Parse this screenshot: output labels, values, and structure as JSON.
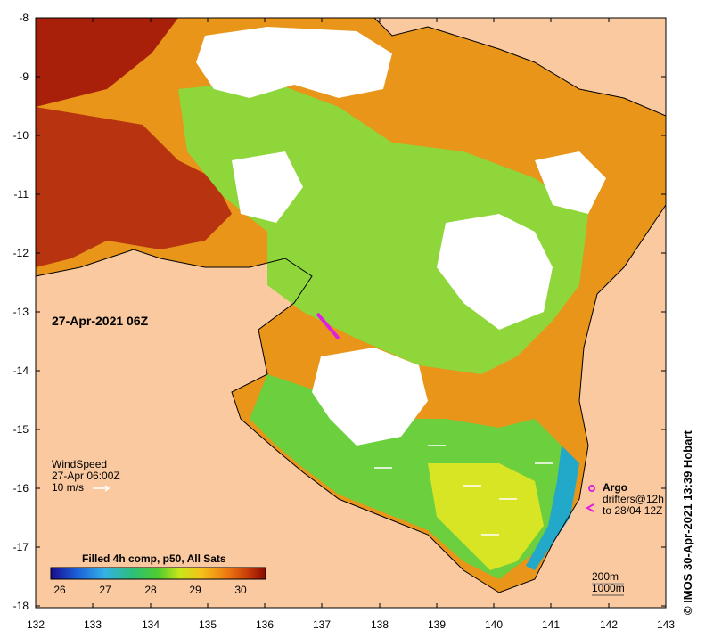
{
  "map": {
    "timestamp_label": "27-Apr-2021 06Z",
    "y_ticks": [
      "-8",
      "-9",
      "-10",
      "-11",
      "-12",
      "-13",
      "-14",
      "-15",
      "-16",
      "-17",
      "-18"
    ],
    "x_ticks": [
      "132",
      "133",
      "134",
      "135",
      "136",
      "137",
      "138",
      "139",
      "140",
      "141",
      "142",
      "143"
    ],
    "wind": {
      "title": "WindSpeed",
      "time": "27-Apr 06:00Z",
      "scale": "10 m/s"
    },
    "argo": {
      "title": "Argo",
      "line1": "drifters@12h",
      "line2": "to 28/04 12Z"
    },
    "colorbar": {
      "title": "Filled 4h comp, p50, All Sats",
      "ticks": [
        "26",
        "27",
        "28",
        "29",
        "30"
      ],
      "colors": [
        "#1a0a8c",
        "#1b5fd8",
        "#34b0e6",
        "#2bc07a",
        "#4fcc2e",
        "#c8e619",
        "#f6c21a",
        "#ef7a12",
        "#c63a08",
        "#8a0a02"
      ]
    },
    "depth": {
      "line1": "200m",
      "line2": "1000m"
    },
    "credit": "© IMOS 30-Apr-2021 13:39 Hobart",
    "colors": {
      "land": "#fac9a0",
      "cloud": "#ffffff",
      "hot": "#8c0a04",
      "warm": "#e8951a",
      "mid": "#7fd43a",
      "cool": "#1aa3c8"
    }
  }
}
